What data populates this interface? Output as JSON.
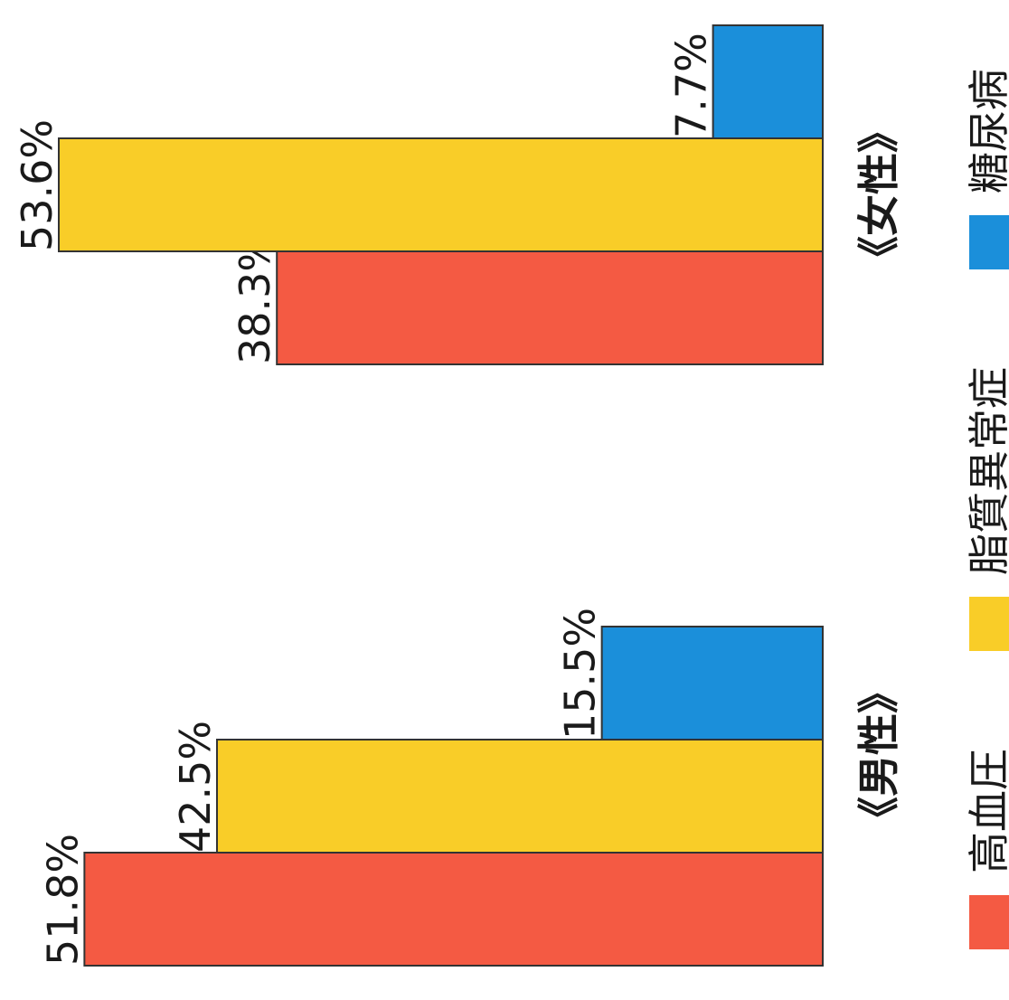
{
  "chart_data": {
    "type": "bar",
    "categories": [
      "男性",
      "女性"
    ],
    "group_labels": [
      "《男性》",
      "《女性》"
    ],
    "series": [
      {
        "name": "高血圧",
        "values": [
          51.8,
          38.3
        ],
        "labels": [
          "51.8%",
          "38.3%"
        ],
        "color": "#f45a43"
      },
      {
        "name": "脂質異常症",
        "values": [
          42.5,
          53.6
        ],
        "labels": [
          "42.5%",
          "53.6%"
        ],
        "color": "#f9cd28"
      },
      {
        "name": "糖尿病",
        "values": [
          15.5,
          7.7
        ],
        "labels": [
          "15.5%",
          "7.7%"
        ],
        "color": "#1b8fda"
      }
    ],
    "unit": "%",
    "ylim": [
      0,
      55
    ],
    "orientation": "rotated-90-clockwise",
    "legend_position": "bottom",
    "grid": false
  }
}
